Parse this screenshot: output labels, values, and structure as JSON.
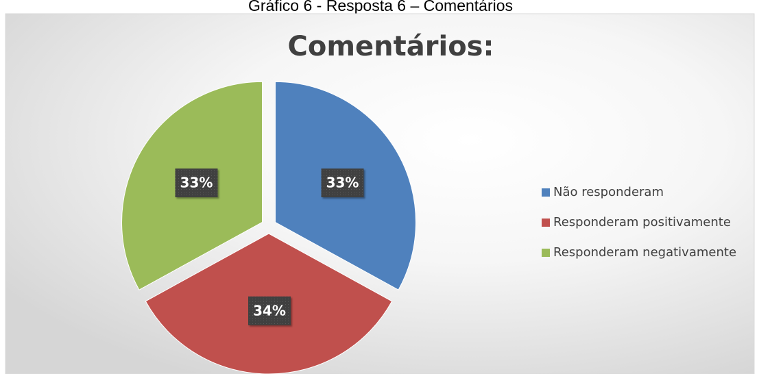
{
  "caption": "Gráfico 6 - Resposta 6 – Comentários",
  "chart_data": {
    "type": "pie",
    "title": "Comentários:",
    "categories": [
      "Não responderam",
      "Responderam positivamente",
      "Responderam negativamente"
    ],
    "values": [
      33,
      34,
      33
    ],
    "value_labels": [
      "33%",
      "34%",
      "33%"
    ],
    "colors": [
      "#4f81bd",
      "#c0504d",
      "#9bbb59"
    ],
    "legend": "right"
  }
}
